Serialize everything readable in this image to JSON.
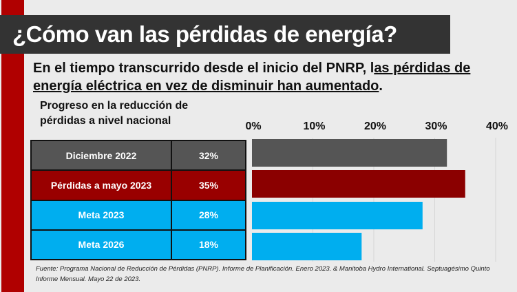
{
  "title": "¿Cómo van las pérdidas de energía?",
  "subtitle": {
    "plain": "En el tiempo transcurrido desde el inicio del PNRP, l",
    "underlined": "as pérdidas de energía eléctrica en vez de disminuir han aumentado",
    "end": "."
  },
  "footnote": "Fuente: Programa Nacional de Reducción de Pérdidas (PNRP). Informe de Planificación. Enero 2023. & Manitoba Hydro International. Septuagésimo Quinto Informe Mensual. Mayo 22 de 2023.",
  "chart_data": {
    "type": "bar",
    "orientation": "horizontal",
    "title": "Progreso en la reducción de pérdidas a nivel nacional",
    "categories": [
      "Diciembre 2022",
      "Pérdidas a mayo 2023",
      "Meta 2023",
      "Meta 2026"
    ],
    "values": [
      32,
      35,
      28,
      18
    ],
    "value_labels": [
      "32%",
      "35%",
      "28%",
      "18%"
    ],
    "colors": [
      "#555555",
      "#8b0000",
      "#00aeef",
      "#00aeef"
    ],
    "table_colors": [
      "#555555",
      "#990000",
      "#00aeef",
      "#00aeef"
    ],
    "xlim": [
      0,
      40
    ],
    "xticks": [
      "0%",
      "10%",
      "20%",
      "30%",
      "40%"
    ],
    "grid": true
  }
}
